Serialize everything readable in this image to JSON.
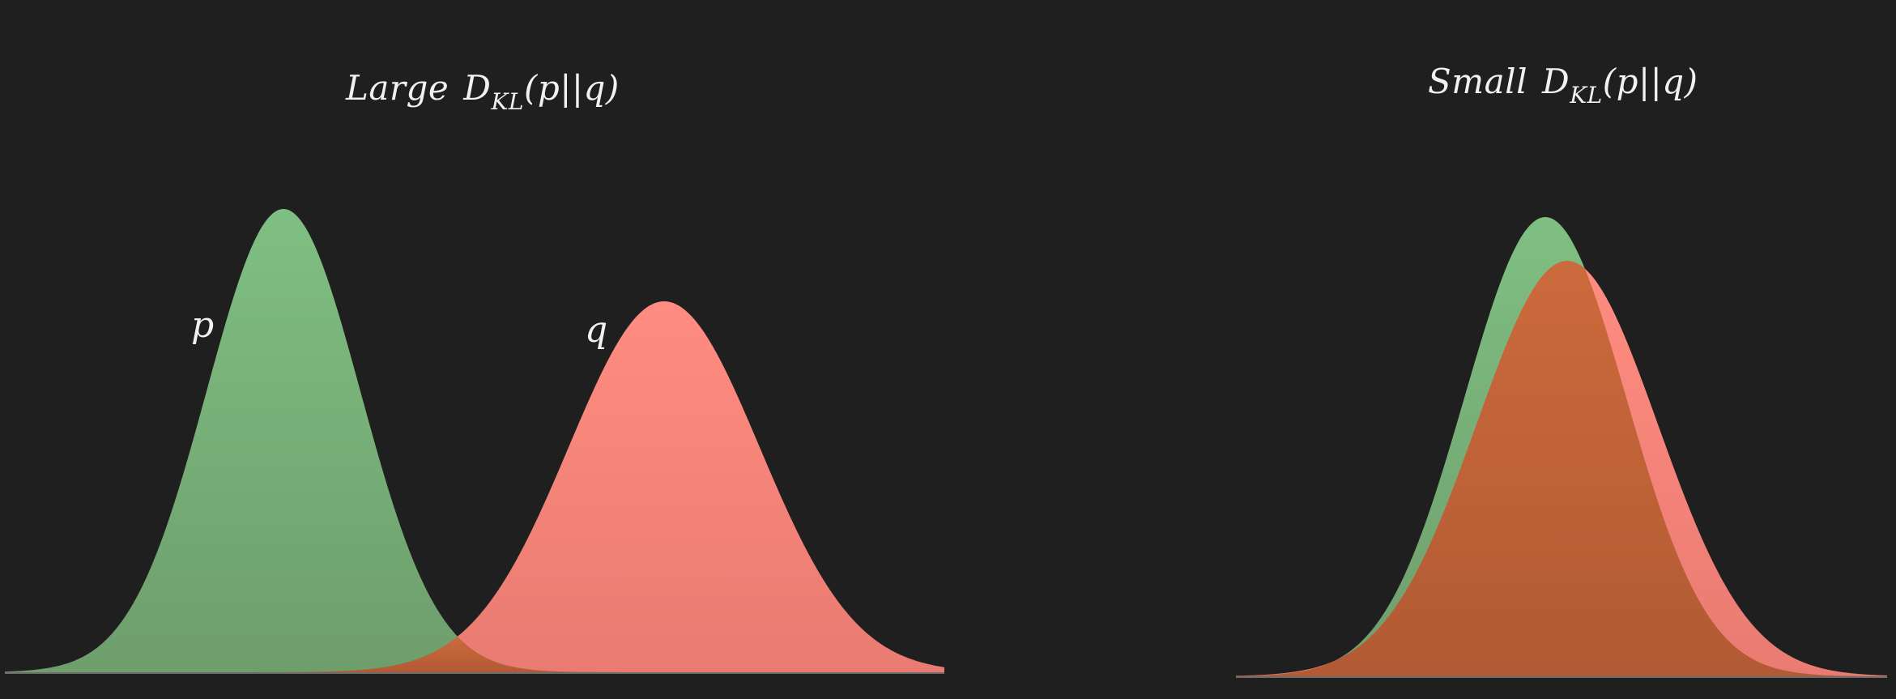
{
  "panels": {
    "left": {
      "title": {
        "adjective": "Large",
        "symbol": "D",
        "subscript": "KL",
        "argument": "(p||q)"
      },
      "labels": {
        "p": "p",
        "q": "q"
      }
    },
    "right": {
      "title": {
        "adjective": "Small",
        "symbol": "D",
        "subscript": "KL",
        "argument": "(p||q)"
      }
    }
  },
  "colors": {
    "background": "#1f1f1f",
    "p_fill": "#7bb97e",
    "q_fill": "#ff8a7e",
    "overlap_fill": "#c4633a",
    "text": "#f1f1f1"
  }
}
